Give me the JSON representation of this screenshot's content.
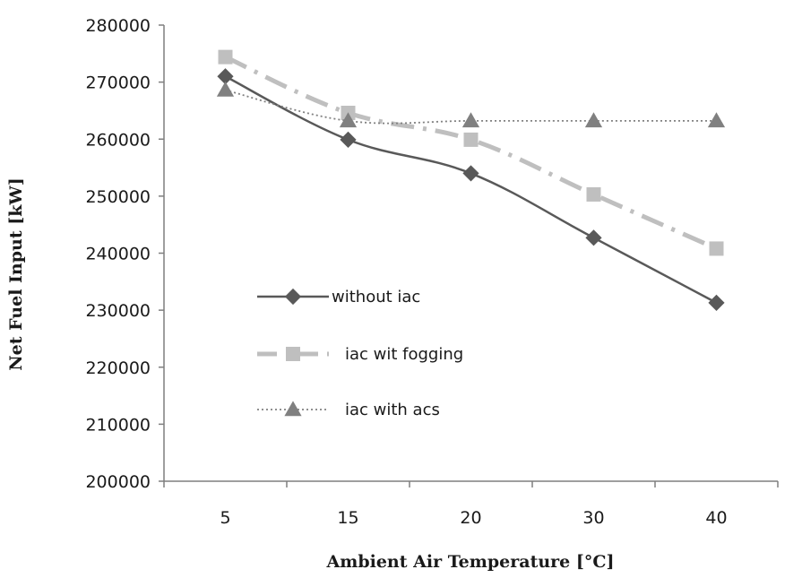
{
  "chart_data": {
    "type": "line",
    "categories": [
      "5",
      "15",
      "20",
      "30",
      "40"
    ],
    "ylabel": "Net Fuel Input [kW]",
    "xlabel": "Ambient Air Temperature [°C]",
    "ylim": [
      200000,
      280000
    ],
    "yticks": [
      "200000",
      "210000",
      "220000",
      "230000",
      "240000",
      "250000",
      "260000",
      "270000",
      "280000"
    ],
    "grid": false,
    "legend_placement": "center-left",
    "series": [
      {
        "name": "without iac",
        "values": [
          271000,
          259900,
          254000,
          242700,
          231300
        ],
        "color": "#595959",
        "marker": "diamond",
        "dash": "solid"
      },
      {
        "name": "iac wit fogging",
        "values": [
          274400,
          264600,
          259900,
          250300,
          240800
        ],
        "color": "#bfbfbf",
        "marker": "square",
        "dash": "dashdot"
      },
      {
        "name": "iac with acs",
        "values": [
          268600,
          263200,
          263200,
          263200,
          263200
        ],
        "color": "#808080",
        "marker": "triangle",
        "dash": "dotted"
      }
    ]
  }
}
